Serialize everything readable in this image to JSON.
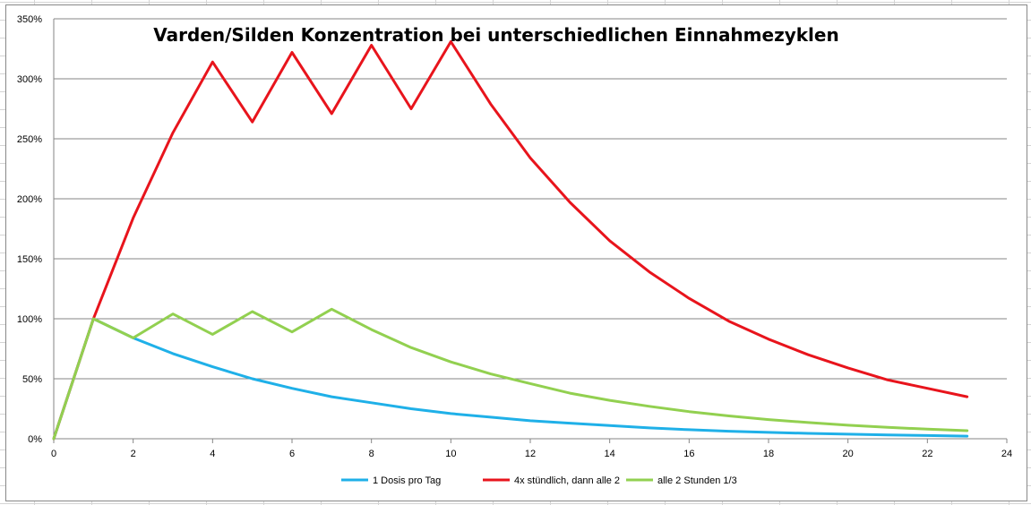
{
  "chart_data": {
    "type": "line",
    "title": "Varden/Silden Konzentration bei unterschiedlichen Einnahmezyklen",
    "xlabel": "",
    "ylabel": "",
    "xlim": [
      0,
      24
    ],
    "ylim": [
      0,
      3.5
    ],
    "x_ticks": [
      0,
      2,
      4,
      6,
      8,
      10,
      12,
      14,
      16,
      18,
      20,
      22,
      24
    ],
    "y_ticks": [
      0,
      0.5,
      1.0,
      1.5,
      2.0,
      2.5,
      3.0,
      3.5
    ],
    "y_tick_labels": [
      "0%",
      "50%",
      "100%",
      "150%",
      "200%",
      "250%",
      "300%",
      "350%"
    ],
    "grid": "horizontal",
    "legend_position": "bottom",
    "x": [
      0,
      1,
      2,
      3,
      4,
      5,
      6,
      7,
      8,
      9,
      10,
      11,
      12,
      13,
      14,
      15,
      16,
      17,
      18,
      19,
      20,
      21,
      22,
      23
    ],
    "series": [
      {
        "name": "1 Dosis pro Tag",
        "color": "#1fb0e8",
        "values": [
          0,
          1.0,
          0.84,
          0.71,
          0.6,
          0.5,
          0.42,
          0.35,
          0.3,
          0.25,
          0.21,
          0.18,
          0.15,
          0.13,
          0.11,
          0.09,
          0.075,
          0.063,
          0.053,
          0.045,
          0.038,
          0.032,
          0.027,
          0.022
        ]
      },
      {
        "name": "4x stündlich, dann alle 2",
        "color": "#e8141c",
        "values": [
          0,
          1.0,
          1.84,
          2.55,
          3.14,
          2.64,
          3.22,
          2.71,
          3.28,
          2.75,
          3.31,
          2.79,
          2.34,
          1.97,
          1.65,
          1.39,
          1.17,
          0.98,
          0.83,
          0.7,
          0.59,
          0.49,
          0.42,
          0.35
        ]
      },
      {
        "name": "alle 2 Stunden 1/3",
        "color": "#92d050",
        "values": [
          0,
          1.0,
          0.84,
          1.04,
          0.87,
          1.06,
          0.89,
          1.08,
          0.91,
          0.76,
          0.64,
          0.54,
          0.46,
          0.38,
          0.32,
          0.27,
          0.226,
          0.19,
          0.16,
          0.135,
          0.113,
          0.095,
          0.08,
          0.067
        ]
      }
    ]
  }
}
